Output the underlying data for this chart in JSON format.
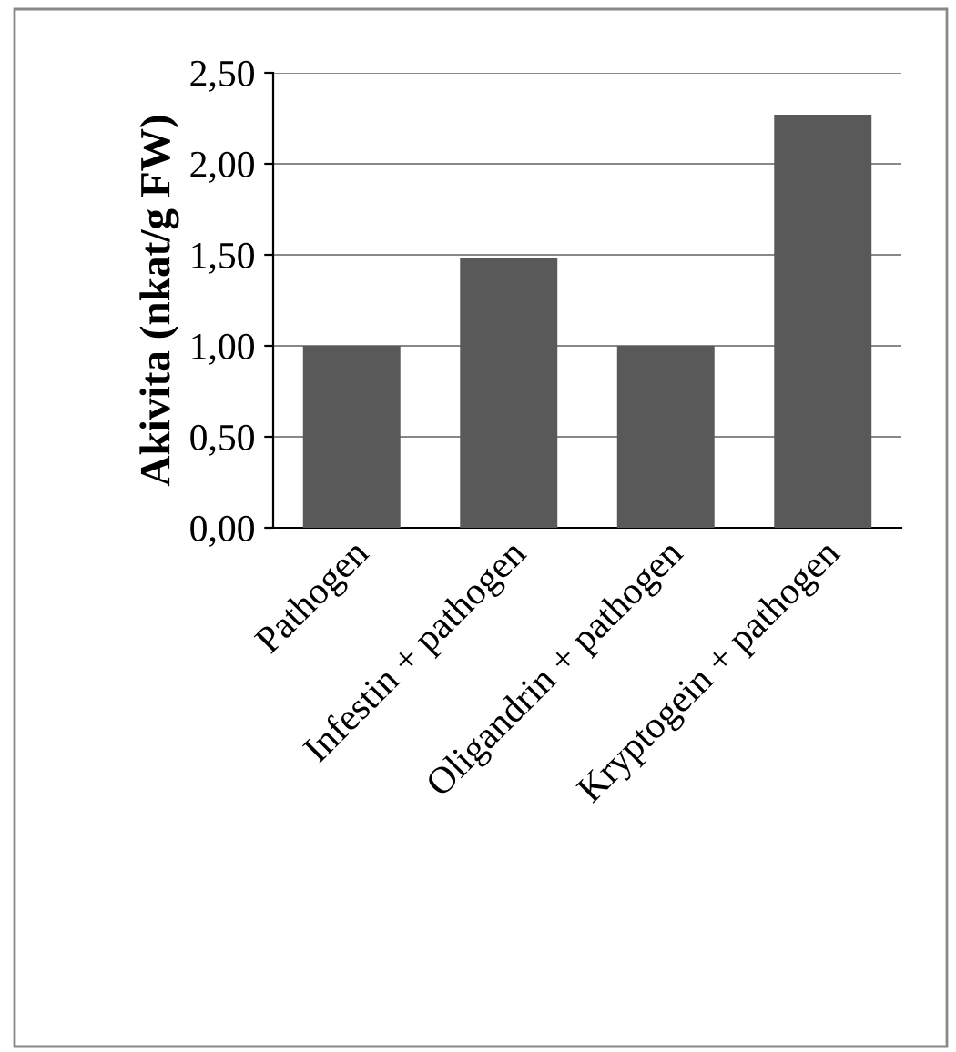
{
  "chart_data": {
    "type": "bar",
    "ylabel": "Akivita (nkat/g FW)",
    "categories": [
      "Pathogen",
      "Infestin + pathogen",
      "Oligandrin + pathogen",
      "Kryptogein + pathogen"
    ],
    "values": [
      1.0,
      1.48,
      1.0,
      2.27
    ],
    "color": "#595959",
    "ylim": [
      0,
      2.5
    ],
    "yticks": [
      {
        "value": 0,
        "label": "0,00"
      },
      {
        "value": 0.5,
        "label": "0,50"
      },
      {
        "value": 1.0,
        "label": "1,00"
      },
      {
        "value": 1.5,
        "label": "1,50"
      },
      {
        "value": 2.0,
        "label": "2,00"
      },
      {
        "value": 2.5,
        "label": "2,50"
      }
    ],
    "grid": "y"
  }
}
